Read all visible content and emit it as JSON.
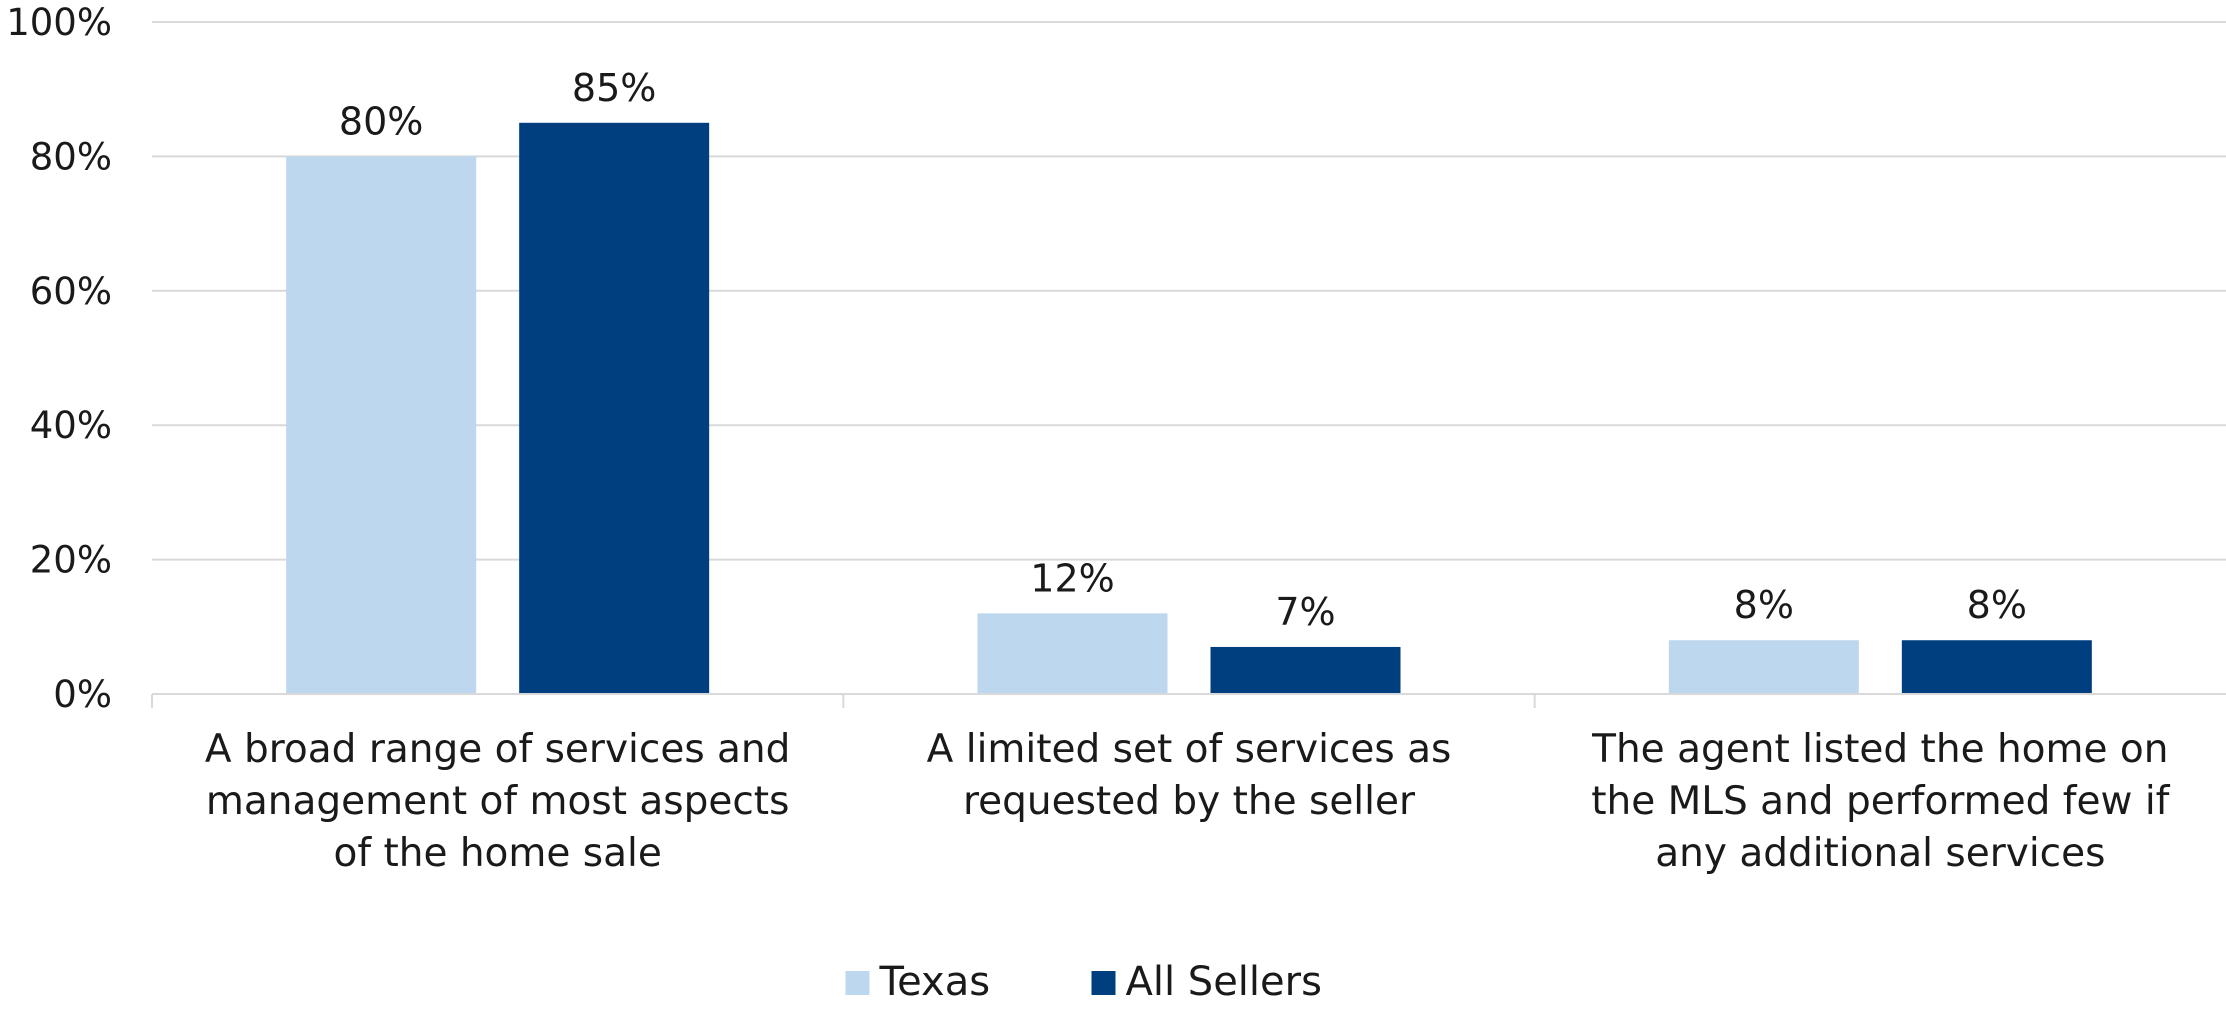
{
  "chart_data": {
    "type": "bar",
    "categories": [
      [
        "A broad range of services and",
        "management of most aspects",
        "of the home sale"
      ],
      [
        "A limited set of services as",
        "requested by the seller"
      ],
      [
        "The agent listed the home on",
        "the MLS and performed few if",
        "any additional services"
      ]
    ],
    "series": [
      {
        "name": "Texas",
        "values": [
          80,
          12,
          8
        ],
        "labels": [
          "80%",
          "12%",
          "8%"
        ],
        "color": "#bdd7ee"
      },
      {
        "name": "All Sellers",
        "values": [
          85,
          7,
          8
        ],
        "labels": [
          "85%",
          "7%",
          "8%"
        ],
        "color": "#003f7f"
      }
    ],
    "ylim": [
      0,
      100
    ],
    "yticks": [
      "0%",
      "20%",
      "40%",
      "60%",
      "80%",
      "100%"
    ],
    "grid": true,
    "legend": "bottom-center",
    "gridline_color": "#d9d9d9"
  }
}
